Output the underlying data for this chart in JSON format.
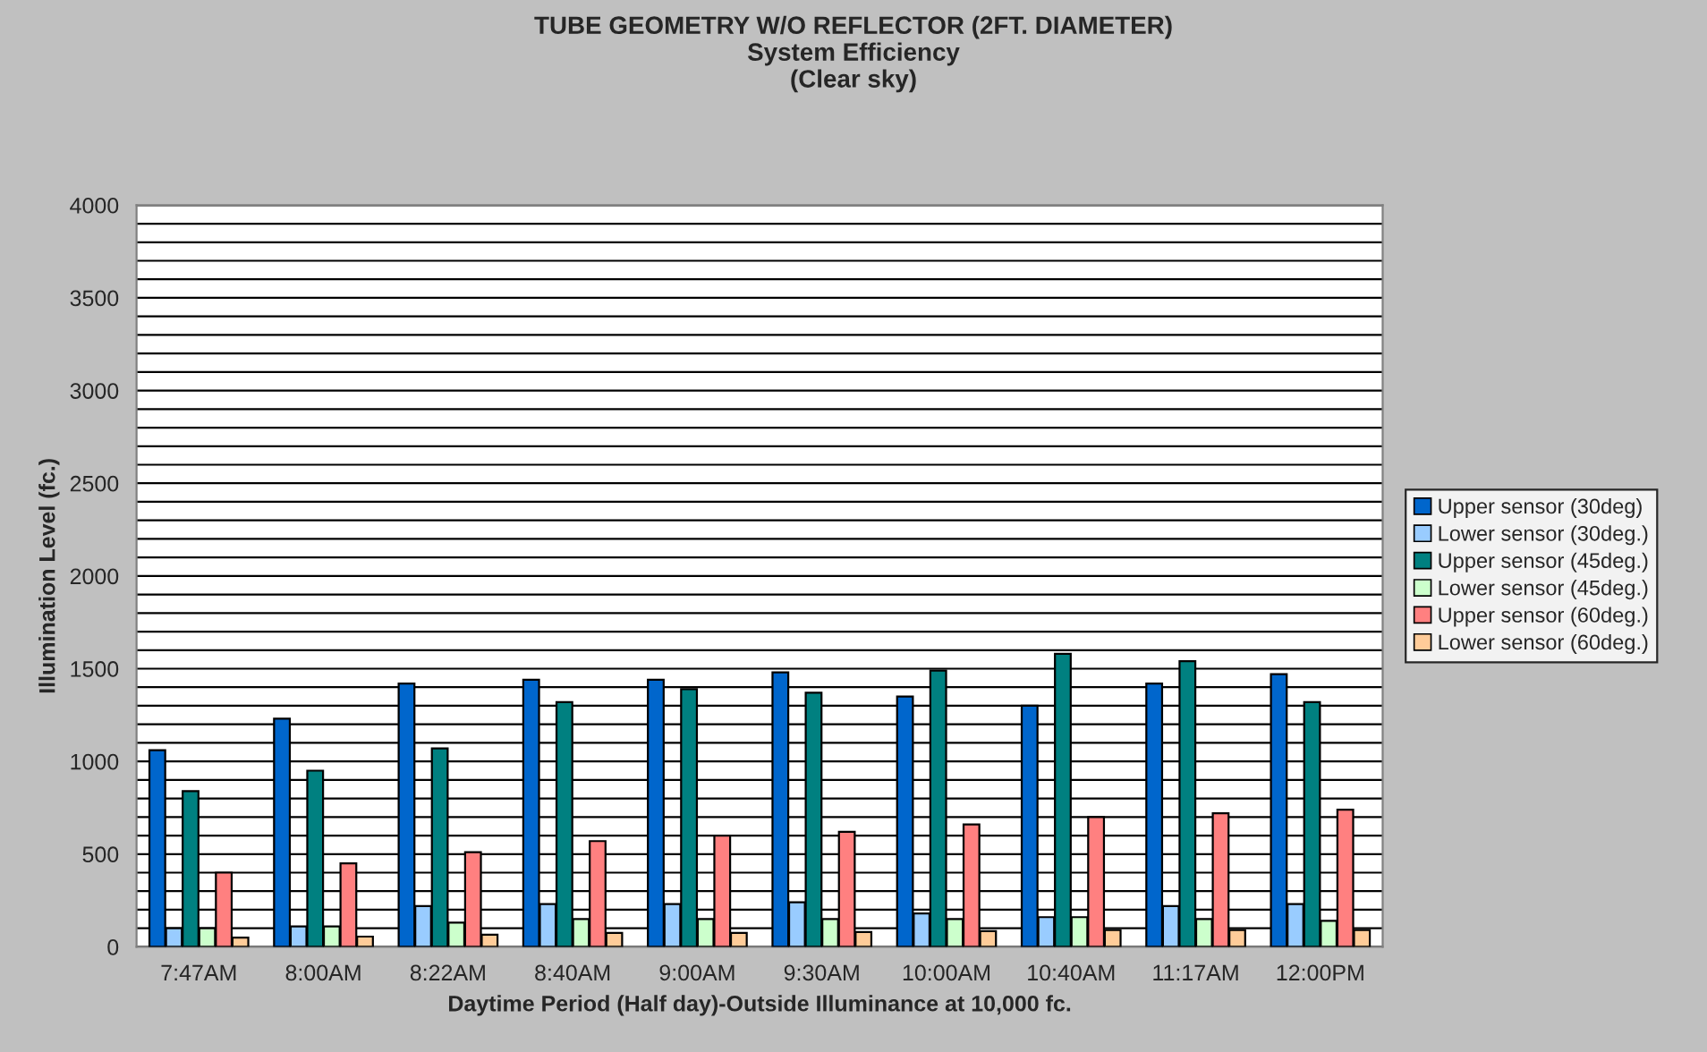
{
  "chart_data": {
    "type": "bar",
    "title": "TUBE GEOMETRY W/O REFLECTOR (2FT. DIAMETER)\nSystem Efficiency\n(Clear sky)",
    "xlabel": "Daytime Period (Half day)-Outside Illuminance at 10,000 fc.",
    "ylabel": "Illumination Level (fc.)",
    "categories": [
      "7:47AM",
      "8:00AM",
      "8:22AM",
      "8:40AM",
      "9:00AM",
      "9:30AM",
      "10:00AM",
      "10:40AM",
      "11:17AM",
      "12:00PM"
    ],
    "series": [
      {
        "name": "Upper sensor (30deg)",
        "color": "#0066cc",
        "values": [
          1060,
          1230,
          1420,
          1440,
          1440,
          1480,
          1350,
          1300,
          1420,
          1470
        ]
      },
      {
        "name": "Lower sensor (30deg.)",
        "color": "#99ccff",
        "values": [
          100,
          110,
          220,
          230,
          230,
          240,
          180,
          160,
          220,
          230
        ]
      },
      {
        "name": "Upper sensor (45deg.)",
        "color": "#008080",
        "values": [
          840,
          950,
          1070,
          1320,
          1390,
          1370,
          1490,
          1580,
          1540,
          1320
        ]
      },
      {
        "name": "Lower sensor (45deg.)",
        "color": "#ccffcc",
        "values": [
          100,
          110,
          130,
          150,
          150,
          150,
          150,
          160,
          150,
          140
        ]
      },
      {
        "name": "Upper sensor (60deg.)",
        "color": "#ff8080",
        "values": [
          400,
          450,
          510,
          570,
          600,
          620,
          660,
          700,
          720,
          740
        ]
      },
      {
        "name": "Lower sensor (60deg.)",
        "color": "#ffcc99",
        "values": [
          50,
          55,
          65,
          75,
          75,
          80,
          85,
          90,
          90,
          90
        ]
      }
    ],
    "ylim": [
      0,
      4000
    ],
    "yticks": [
      0,
      500,
      1000,
      1500,
      2000,
      2500,
      3000,
      3500,
      4000
    ],
    "grid": "y",
    "legend": "right"
  }
}
